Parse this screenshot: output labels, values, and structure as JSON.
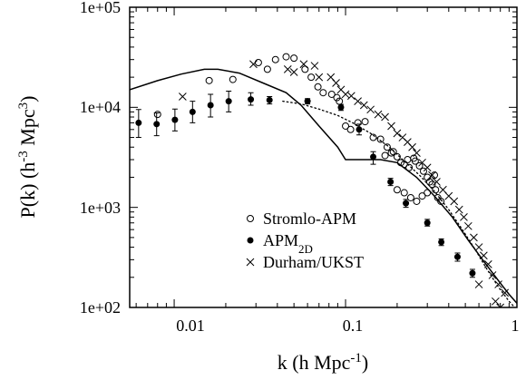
{
  "chart_data": {
    "type": "scatter",
    "x_scale": "log",
    "y_scale": "log",
    "xlim": [
      0.0055,
      1.0
    ],
    "ylim": [
      100,
      100000
    ],
    "xlabel": {
      "main": "k (h Mpc",
      "sup": "-1",
      "end": ")"
    },
    "ylabel": {
      "main": "P(k) (h",
      "sup1": "-3",
      "mid": " Mpc",
      "sup2": "3",
      "end": ")"
    },
    "x_ticks": [
      {
        "value": 0.01,
        "label": "0.01"
      },
      {
        "value": 0.1,
        "label": "0.1"
      },
      {
        "value": 1,
        "label": "1"
      }
    ],
    "y_ticks": [
      {
        "value": 100,
        "label": "1e+02"
      },
      {
        "value": 1000,
        "label": "1e+03"
      },
      {
        "value": 10000,
        "label": "1e+04"
      },
      {
        "value": 100000,
        "label": "1e+05"
      }
    ],
    "legend": {
      "position": "center-right",
      "entries": [
        {
          "marker": "open-circle",
          "label": "Stromlo-APM",
          "sub": ""
        },
        {
          "marker": "filled-circle",
          "label": "APM",
          "sub": "2D"
        },
        {
          "marker": "cross",
          "label": "Durham/UKST",
          "sub": ""
        }
      ]
    },
    "series": [
      {
        "marker": "open-circle",
        "points": [
          [
            0.008,
            8500
          ],
          [
            0.016,
            18500
          ],
          [
            0.022,
            19000
          ],
          [
            0.031,
            28000
          ],
          [
            0.035,
            24000
          ],
          [
            0.039,
            30000
          ],
          [
            0.045,
            32000
          ],
          [
            0.05,
            31000
          ],
          [
            0.058,
            24000
          ],
          [
            0.063,
            20000
          ],
          [
            0.069,
            16000
          ],
          [
            0.074,
            14000
          ],
          [
            0.083,
            13500
          ],
          [
            0.089,
            12500
          ],
          [
            0.092,
            11500
          ],
          [
            0.1,
            6500
          ],
          [
            0.107,
            6000
          ],
          [
            0.118,
            7000
          ],
          [
            0.13,
            7200
          ],
          [
            0.145,
            5000
          ],
          [
            0.16,
            4800
          ],
          [
            0.175,
            4000
          ],
          [
            0.185,
            3500
          ],
          [
            0.2,
            3200
          ],
          [
            0.21,
            2800
          ],
          [
            0.22,
            2700
          ],
          [
            0.235,
            2500
          ],
          [
            0.255,
            2900
          ],
          [
            0.27,
            2600
          ],
          [
            0.285,
            2300
          ],
          [
            0.3,
            2000
          ],
          [
            0.31,
            1800
          ],
          [
            0.32,
            1700
          ],
          [
            0.335,
            1500
          ],
          [
            0.345,
            1250
          ],
          [
            0.36,
            1150
          ],
          [
            0.2,
            1500
          ],
          [
            0.22,
            1400
          ],
          [
            0.24,
            1250
          ],
          [
            0.26,
            1150
          ],
          [
            0.28,
            1300
          ],
          [
            0.3,
            1400
          ],
          [
            0.17,
            3300
          ],
          [
            0.19,
            3600
          ],
          [
            0.23,
            3000
          ],
          [
            0.25,
            3100
          ],
          [
            0.33,
            2100
          ]
        ]
      },
      {
        "marker": "filled-circle",
        "points": [
          [
            0.0062,
            7000,
            5000,
            9500
          ],
          [
            0.0079,
            6800,
            5200,
            8800
          ],
          [
            0.0101,
            7500,
            5800,
            9600
          ],
          [
            0.0128,
            9000,
            7000,
            11500
          ],
          [
            0.0163,
            10500,
            8000,
            13500
          ],
          [
            0.0208,
            11500,
            9000,
            14500
          ],
          [
            0.028,
            12000,
            10500,
            14000
          ],
          [
            0.036,
            11800,
            10800,
            12800
          ],
          [
            0.06,
            11500,
            10800,
            12200
          ],
          [
            0.094,
            10000,
            9300,
            10700
          ],
          [
            0.12,
            6000,
            5300,
            6800
          ],
          [
            0.145,
            3200,
            2700,
            3600
          ],
          [
            0.183,
            1800,
            1650,
            1950
          ],
          [
            0.225,
            1100,
            1000,
            1200
          ],
          [
            0.3,
            700,
            650,
            760
          ],
          [
            0.362,
            450,
            415,
            485
          ],
          [
            0.45,
            320,
            290,
            350
          ],
          [
            0.55,
            220,
            200,
            240
          ]
        ]
      },
      {
        "marker": "cross",
        "points": [
          [
            0.0112,
            12800
          ],
          [
            0.029,
            27000
          ],
          [
            0.046,
            24000
          ],
          [
            0.05,
            22500
          ],
          [
            0.057,
            27000
          ],
          [
            0.066,
            26000
          ],
          [
            0.07,
            20000
          ],
          [
            0.082,
            20000
          ],
          [
            0.088,
            17500
          ],
          [
            0.094,
            15000
          ],
          [
            0.1,
            13500
          ],
          [
            0.108,
            13000
          ],
          [
            0.118,
            11500
          ],
          [
            0.128,
            10500
          ],
          [
            0.14,
            9500
          ],
          [
            0.155,
            8500
          ],
          [
            0.17,
            8000
          ],
          [
            0.185,
            6500
          ],
          [
            0.2,
            5500
          ],
          [
            0.215,
            5000
          ],
          [
            0.23,
            4500
          ],
          [
            0.245,
            4000
          ],
          [
            0.26,
            3500
          ],
          [
            0.28,
            2800
          ],
          [
            0.3,
            2500
          ],
          [
            0.32,
            2100
          ],
          [
            0.34,
            1800
          ],
          [
            0.37,
            1500
          ],
          [
            0.4,
            1300
          ],
          [
            0.43,
            1150
          ],
          [
            0.46,
            950
          ],
          [
            0.49,
            800
          ],
          [
            0.52,
            650
          ],
          [
            0.56,
            500
          ],
          [
            0.6,
            400
          ],
          [
            0.64,
            330
          ],
          [
            0.68,
            270
          ],
          [
            0.72,
            210
          ],
          [
            0.78,
            170
          ],
          [
            0.85,
            140
          ],
          [
            0.6,
            170
          ],
          [
            0.75,
            115
          ],
          [
            0.8,
            100
          ]
        ]
      },
      {
        "style": "solid",
        "points": [
          [
            0.0055,
            15000
          ],
          [
            0.008,
            18500
          ],
          [
            0.011,
            21500
          ],
          [
            0.015,
            24000
          ],
          [
            0.018,
            24000
          ],
          [
            0.024,
            22000
          ],
          [
            0.033,
            17500
          ],
          [
            0.045,
            14000
          ],
          [
            0.055,
            10500
          ],
          [
            0.07,
            6500
          ],
          [
            0.09,
            4000
          ],
          [
            0.1,
            3000
          ],
          [
            0.16,
            3000
          ],
          [
            0.2,
            2800
          ],
          [
            0.26,
            2000
          ],
          [
            0.33,
            1300
          ],
          [
            0.42,
            800
          ],
          [
            0.52,
            470
          ],
          [
            0.65,
            280
          ],
          [
            0.8,
            175
          ],
          [
            0.9,
            135
          ],
          [
            1.0,
            110
          ]
        ]
      },
      {
        "style": "dotted",
        "points": [
          [
            0.043,
            11500
          ],
          [
            0.055,
            10800
          ],
          [
            0.07,
            9600
          ],
          [
            0.09,
            8300
          ],
          [
            0.11,
            7000
          ],
          [
            0.14,
            5500
          ],
          [
            0.18,
            4000
          ],
          [
            0.22,
            2900
          ],
          [
            0.27,
            2100
          ],
          [
            0.33,
            1450
          ],
          [
            0.4,
            950
          ],
          [
            0.48,
            600
          ],
          [
            0.57,
            380
          ],
          [
            0.67,
            240
          ],
          [
            0.78,
            160
          ],
          [
            0.9,
            115
          ],
          [
            1.0,
            95
          ]
        ]
      }
    ]
  }
}
